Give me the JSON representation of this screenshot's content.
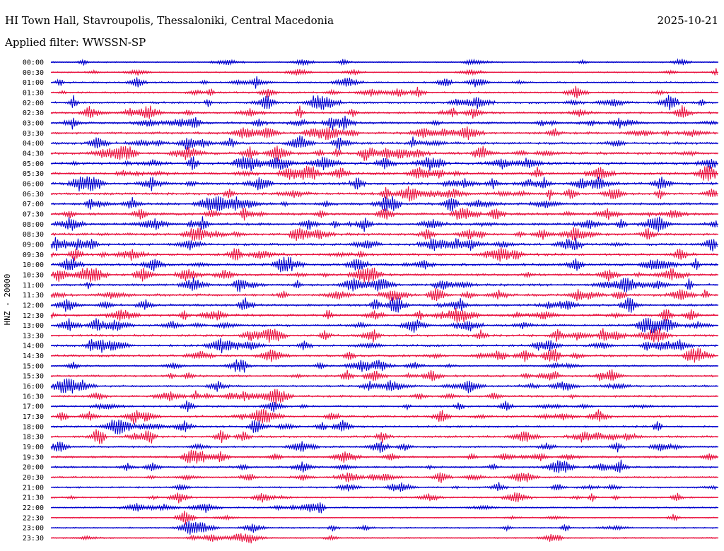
{
  "header": {
    "station": "HI Town Hall, Stavroupolis, Thessaloniki, Central Macedonia",
    "date": "2025-10-21",
    "filter": "Applied filter: WWSSN-SP"
  },
  "chart_data": {
    "type": "line",
    "title": "HI Town Hall, Stavroupolis, Thessaloniki, Central Macedonia",
    "ylabel": "HNZ - 20000",
    "xlabel": "",
    "rows": [
      "00:00",
      "00:30",
      "01:00",
      "01:30",
      "02:00",
      "02:30",
      "03:00",
      "03:30",
      "04:00",
      "04:30",
      "05:00",
      "05:30",
      "06:00",
      "06:30",
      "07:00",
      "07:30",
      "08:00",
      "08:30",
      "09:00",
      "09:30",
      "10:00",
      "10:30",
      "11:00",
      "11:30",
      "12:00",
      "12:30",
      "13:00",
      "13:30",
      "14:00",
      "14:30",
      "15:00",
      "15:30",
      "16:00",
      "16:30",
      "17:00",
      "17:30",
      "18:00",
      "18:30",
      "19:00",
      "19:30",
      "20:00",
      "20:30",
      "21:00",
      "21:30",
      "22:00",
      "22:30",
      "23:00",
      "23:30"
    ],
    "row_colors": [
      "#0000cc",
      "#e8123f"
    ],
    "activity": [
      0.35,
      0.3,
      0.55,
      0.55,
      0.75,
      0.8,
      0.85,
      0.85,
      0.95,
      1.0,
      1.0,
      1.0,
      1.0,
      0.95,
      0.9,
      0.95,
      0.9,
      0.95,
      0.9,
      0.95,
      0.95,
      0.9,
      0.9,
      0.95,
      0.9,
      0.9,
      0.85,
      0.85,
      0.85,
      0.8,
      0.6,
      0.75,
      0.7,
      0.7,
      0.6,
      0.75,
      0.7,
      0.8,
      0.6,
      0.7,
      0.65,
      0.6,
      0.5,
      0.55,
      0.45,
      0.3,
      0.4,
      0.35
    ],
    "grid": false,
    "legend": "none"
  }
}
